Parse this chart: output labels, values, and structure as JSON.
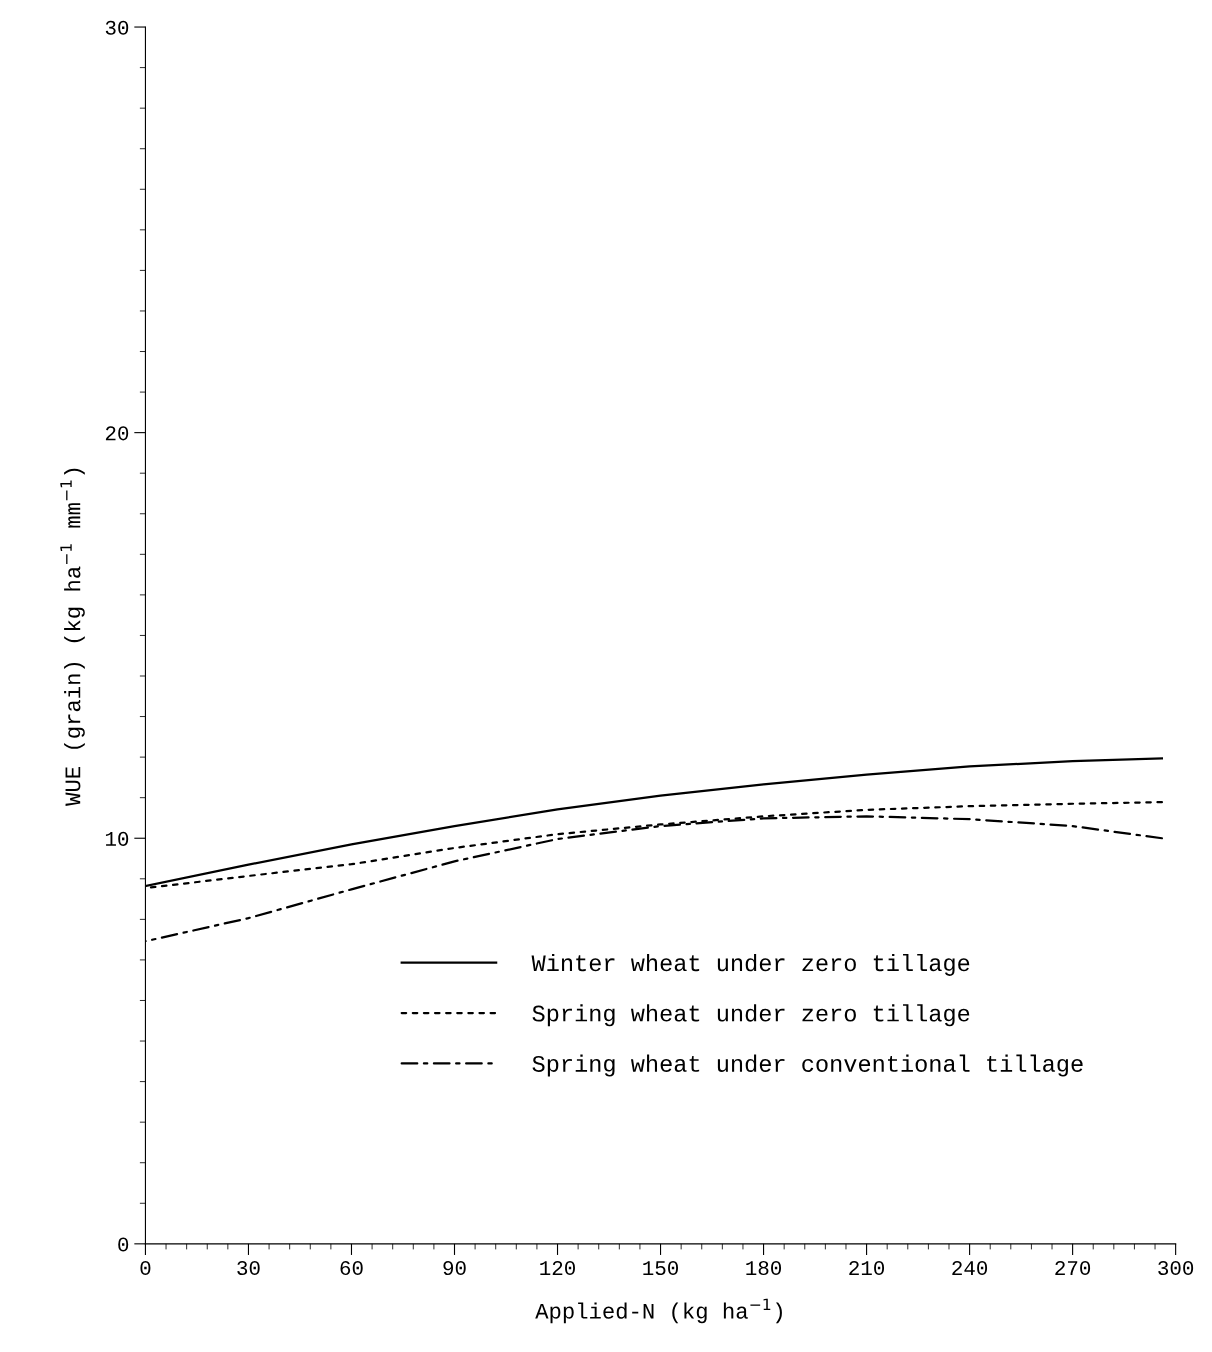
{
  "chart_data": {
    "type": "line",
    "xlabel": "Applied-N (kg ha$^{−1}$)",
    "ylabel": "WUE (grain) (kg ha$^{−1}$ mm$^{−1}$)",
    "xlim": [
      0,
      300
    ],
    "xticks": [
      0,
      30,
      60,
      90,
      120,
      150,
      180,
      210,
      240,
      270,
      300
    ],
    "ylim": [
      0,
      30
    ],
    "yticks": [
      0,
      10,
      20,
      30
    ],
    "grid": false,
    "legend": "bottom",
    "marker": "none",
    "series": [
      {
        "name": "Winter wheat under zero tillage",
        "color": "#000000",
        "line_style": "solid",
        "x": [
          0,
          30,
          60,
          90,
          120,
          150,
          180,
          210,
          240,
          270,
          296
        ],
        "values": [
          8.82,
          9.35,
          9.85,
          10.3,
          10.71,
          11.05,
          11.33,
          11.57,
          11.77,
          11.9,
          11.97
        ]
      },
      {
        "name": "Spring wheat under zero tillage",
        "color": "#000000",
        "line_style": "dotted",
        "x": [
          0,
          30,
          60,
          90,
          120,
          150,
          180,
          210,
          240,
          270,
          296
        ],
        "values": [
          8.77,
          9.07,
          9.36,
          9.76,
          10.1,
          10.34,
          10.54,
          10.7,
          10.79,
          10.85,
          10.89
        ]
      },
      {
        "name": "Spring wheat under conventional tillage",
        "color": "#000000",
        "line_style": "dashdot",
        "x": [
          0,
          30,
          60,
          90,
          120,
          150,
          180,
          210,
          240,
          270,
          296
        ],
        "values": [
          7.46,
          8.03,
          8.74,
          9.43,
          9.98,
          10.3,
          10.49,
          10.54,
          10.47,
          10.3,
          10.0
        ]
      }
    ]
  }
}
